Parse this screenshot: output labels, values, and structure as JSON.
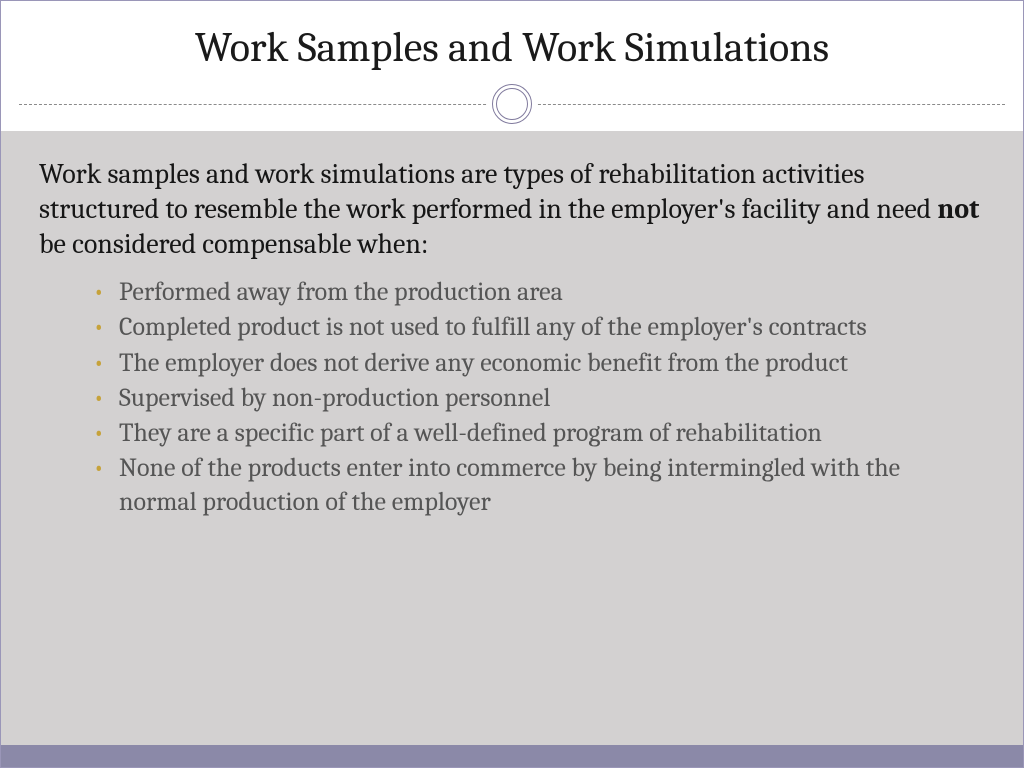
{
  "title": "Work Samples and Work Simulations",
  "intro_pre": "Work samples and work simulations are types of rehabilitation activities structured to resemble the work performed in the employer's facility and need ",
  "intro_bold": "not",
  "intro_post": " be considered compensable when:",
  "bullets": [
    "Performed away from the production area",
    "Completed product is not used to fulfill any of the employer's contracts",
    "The employer does not derive any economic benefit from the product",
    "Supervised by non-production personnel",
    "They are a specific part of a well-defined program of rehabilitation",
    "None of the products enter into commerce by being intermingled with the normal production of the employer"
  ],
  "style": {
    "slide_border_color": "#9a96b8",
    "title_color": "#1a1a1a",
    "title_fontsize": 42,
    "divider_dash_color": "#8a8a8a",
    "ring_color": "#807a9d",
    "body_bg": "#d3d1d1",
    "intro_color": "#161616",
    "intro_fontsize": 28,
    "bullet_text_color": "#555555",
    "bullet_marker_color": "#c6a23a",
    "bullet_fontsize": 26,
    "footer_bar_color": "#8b89a8",
    "footer_bar_height": 22
  }
}
